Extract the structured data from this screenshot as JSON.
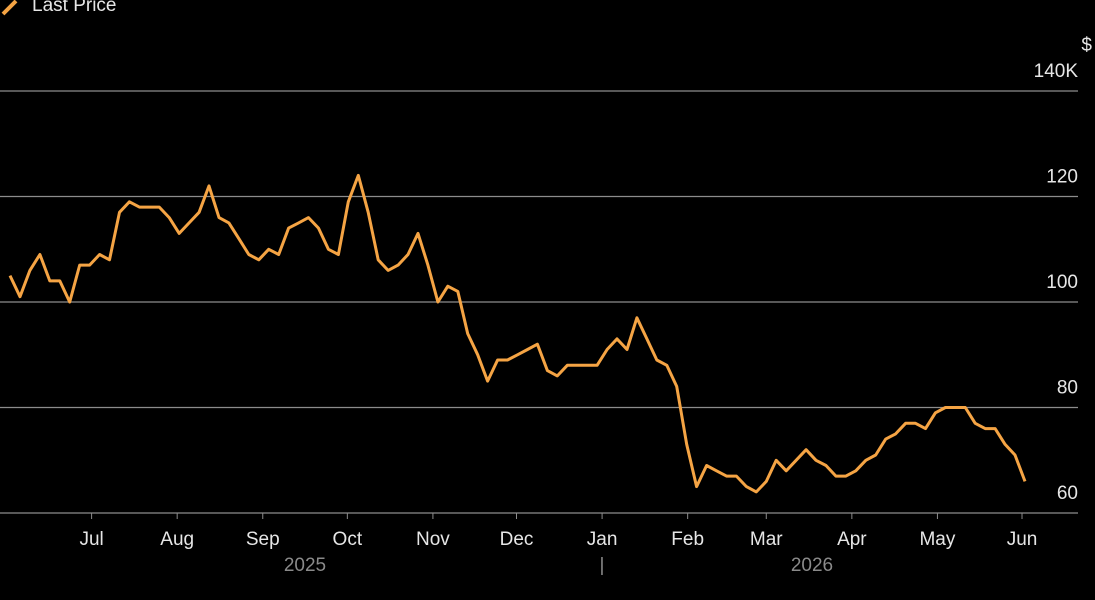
{
  "chart_data": {
    "type": "line",
    "y_unit": "$",
    "series": [
      {
        "name": "Last Price",
        "color": "#f5a444",
        "values": [
          105,
          101,
          106,
          109,
          104,
          104,
          100,
          107,
          107,
          109,
          108,
          117,
          119,
          118,
          118,
          118,
          116,
          113,
          115,
          117,
          122,
          116,
          115,
          112,
          109,
          108,
          110,
          109,
          114,
          115,
          116,
          114,
          110,
          109,
          119,
          124,
          117,
          108,
          106,
          107,
          109,
          113,
          107,
          100,
          103,
          102,
          94,
          90,
          85,
          89,
          89,
          90,
          91,
          92,
          87,
          86,
          88,
          88,
          88,
          88,
          91,
          93,
          91,
          97,
          93,
          89,
          88,
          84,
          73,
          65,
          69,
          68,
          67,
          67,
          65,
          64,
          66,
          70,
          68,
          70,
          72,
          70,
          69,
          67,
          67,
          68,
          70,
          71,
          74,
          75,
          77,
          77,
          76,
          79,
          80,
          80,
          80,
          77,
          76,
          76,
          73,
          71,
          66
        ]
      }
    ],
    "xlim": [
      0,
      102
    ],
    "xticks": [
      {
        "value": 8.2,
        "label": "Jul"
      },
      {
        "value": 16.8,
        "label": "Aug"
      },
      {
        "value": 25.4,
        "label": "Sep"
      },
      {
        "value": 33.9,
        "label": "Oct"
      },
      {
        "value": 42.5,
        "label": "Nov"
      },
      {
        "value": 50.9,
        "label": "Dec"
      },
      {
        "value": 59.5,
        "label": "Jan"
      },
      {
        "value": 68.1,
        "label": "Feb"
      },
      {
        "value": 76,
        "label": "Mar"
      },
      {
        "value": 84.6,
        "label": "Apr"
      },
      {
        "value": 93.2,
        "label": "May"
      },
      {
        "value": 101.7,
        "label": "Jun"
      }
    ],
    "years": [
      "2025",
      "|",
      "2026"
    ],
    "ylim": [
      60,
      140
    ],
    "yticks": [
      60,
      80,
      100,
      120,
      {
        "value": 140,
        "label": "140K"
      }
    ],
    "grid": true
  }
}
